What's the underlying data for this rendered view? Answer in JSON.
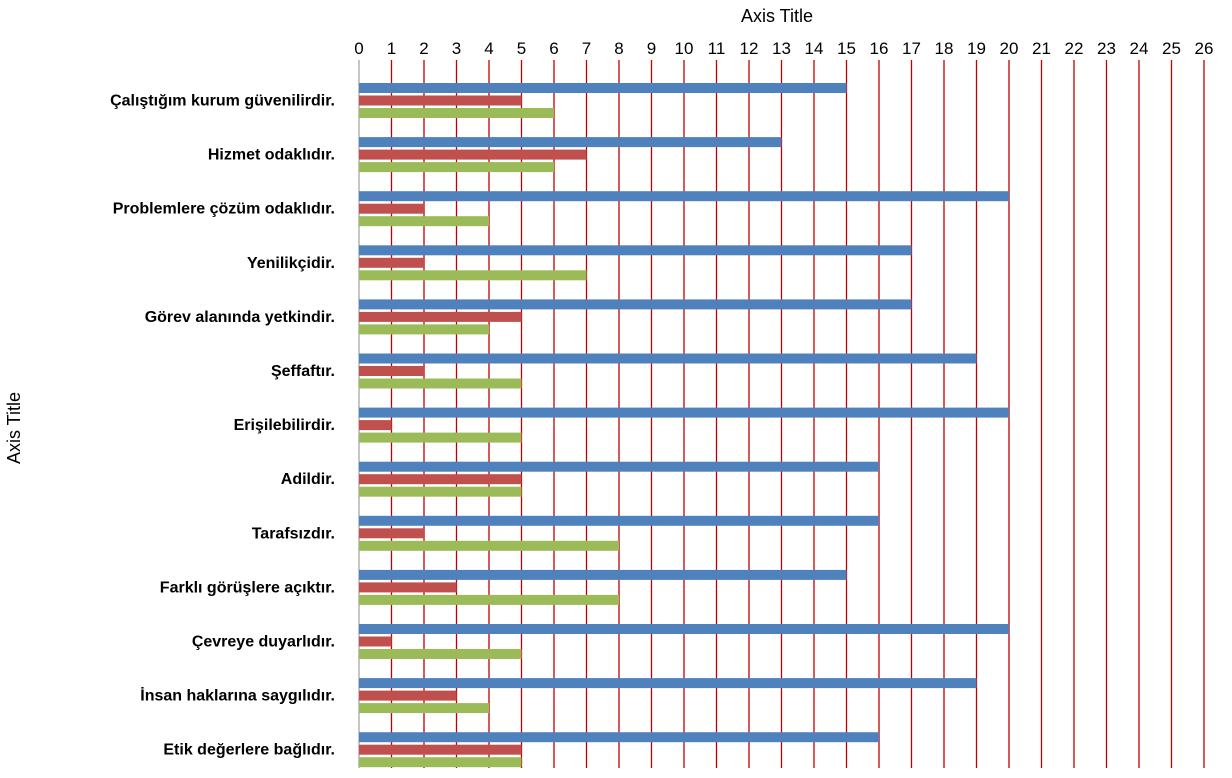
{
  "chart_data": {
    "type": "bar",
    "orientation": "horizontal",
    "xlabel": "Axis Title",
    "ylabel": "Axis Title",
    "xlim": [
      0,
      26
    ],
    "x_tick_step": 1,
    "x_axis_position": "top",
    "grid": true,
    "categories": [
      "Çalıştığım kurum güvenilirdir.",
      "Hizmet odaklıdır.",
      "Problemlere çözüm odaklıdır.",
      "Yenilikçidir.",
      "Görev alanında yetkindir.",
      "Şeffaftır.",
      "Erişilebilirdir.",
      "Adildir.",
      "Tarafsızdır.",
      "Farklı görüşlere açıktır.",
      "Çevreye duyarlıdır.",
      "İnsan haklarına saygılıdır.",
      "Etik değerlere bağlıdır."
    ],
    "series": [
      {
        "color": "#4F81BD",
        "values": [
          15,
          13,
          20,
          17,
          17,
          19,
          20,
          16,
          16,
          15,
          20,
          19,
          16
        ]
      },
      {
        "color": "#C0504D",
        "values": [
          5,
          7,
          2,
          2,
          5,
          2,
          1,
          5,
          2,
          3,
          1,
          3,
          5
        ]
      },
      {
        "color": "#9BBB59",
        "values": [
          6,
          6,
          4,
          7,
          4,
          5,
          5,
          5,
          8,
          8,
          5,
          4,
          5
        ]
      }
    ],
    "gridline_color": "#C00000"
  }
}
